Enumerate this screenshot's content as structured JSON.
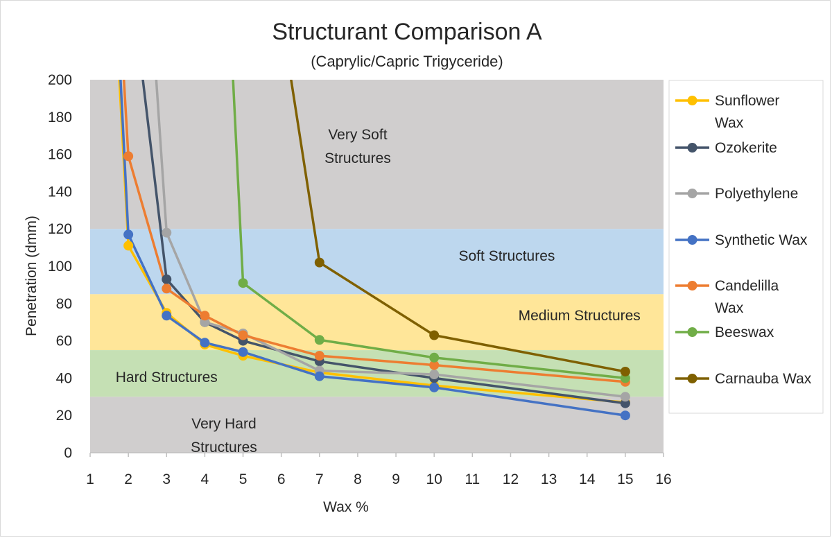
{
  "chart_data": {
    "type": "line",
    "title": "Structurant Comparison A",
    "subtitle": "(Caprylic/Capric Trigyceride)",
    "xlabel": "Wax %",
    "ylabel": "Penetration (dmm)",
    "xlim": [
      1,
      16
    ],
    "ylim": [
      0,
      200
    ],
    "x_ticks": [
      1,
      2,
      3,
      4,
      5,
      6,
      7,
      8,
      9,
      10,
      11,
      12,
      13,
      14,
      15,
      16
    ],
    "y_ticks": [
      0,
      20,
      40,
      60,
      80,
      100,
      120,
      140,
      160,
      180,
      200
    ],
    "x_tick_labels": [
      "1",
      "2",
      "3",
      "4",
      "5",
      "6",
      "7",
      "8",
      "9",
      "10",
      "11",
      "12",
      "13",
      "14",
      "15",
      "16"
    ],
    "y_tick_labels": [
      "0",
      "20",
      "40",
      "60",
      "80",
      "100",
      "120",
      "140",
      "160",
      "180",
      "200"
    ],
    "grid": false,
    "legend_position": "right",
    "bands": [
      {
        "from": 120,
        "to": 200,
        "color": "#d0cece",
        "label_lines": [
          "Very Soft",
          "Structures"
        ],
        "label_x": 8.0,
        "label_y": 168
      },
      {
        "from": 85,
        "to": 120,
        "color": "#bdd7ee",
        "label_lines": [
          "Soft Structures"
        ],
        "label_x": 11.9,
        "label_y": 103
      },
      {
        "from": 55,
        "to": 85,
        "color": "#ffe699",
        "label_lines": [
          "Medium Structures"
        ],
        "label_x": 13.8,
        "label_y": 71
      },
      {
        "from": 30,
        "to": 55,
        "color": "#c5e0b4",
        "label_lines": [
          "Hard Structures"
        ],
        "label_x": 3.0,
        "label_y": 38
      },
      {
        "from": 0,
        "to": 30,
        "color": "#d0cece",
        "label_lines": [
          "Very Hard",
          "Structures"
        ],
        "label_x": 4.5,
        "label_y": 13
      }
    ],
    "series": [
      {
        "name": "Sunflower Wax",
        "legend_lines": [
          "Sunflower",
          "Wax"
        ],
        "color": "#ffc000",
        "x": [
          1.5,
          2,
          3,
          4,
          5,
          7,
          10,
          15
        ],
        "y": [
          300,
          111,
          75,
          58,
          52,
          43,
          36,
          27
        ]
      },
      {
        "name": "Ozokerite",
        "legend_lines": [
          "Ozokerite"
        ],
        "color": "#44546a",
        "x": [
          1.8,
          3,
          4,
          5,
          7,
          10,
          15
        ],
        "y": [
          300,
          93,
          70,
          60,
          49,
          40,
          26.5
        ]
      },
      {
        "name": "Polyethylene",
        "legend_lines": [
          "Polyethylene"
        ],
        "color": "#a5a5a5",
        "x": [
          2.4,
          3,
          4,
          5,
          7,
          10,
          15
        ],
        "y": [
          300,
          118,
          70,
          64,
          44,
          42,
          30
        ]
      },
      {
        "name": "Synthetic Wax",
        "legend_lines": [
          "Synthetic Wax"
        ],
        "color": "#4472c4",
        "x": [
          1.55,
          2,
          3,
          4,
          5,
          7,
          10,
          15
        ],
        "y": [
          300,
          117,
          73.5,
          59,
          54,
          41,
          35,
          20
        ]
      },
      {
        "name": "Candelilla Wax",
        "legend_lines": [
          "Candelilla",
          "Wax"
        ],
        "color": "#ed7d31",
        "x": [
          1.6,
          2,
          3,
          4,
          5,
          7,
          10,
          15
        ],
        "y": [
          300,
          159,
          88,
          73.5,
          63,
          52,
          47,
          38
        ]
      },
      {
        "name": "Beeswax",
        "legend_lines": [
          "Beeswax"
        ],
        "color": "#70ad47",
        "x": [
          4.5,
          5,
          7,
          10,
          15
        ],
        "y": [
          300,
          91,
          60.5,
          51,
          40
        ]
      },
      {
        "name": "Carnauba Wax",
        "legend_lines": [
          "Carnauba Wax"
        ],
        "color": "#7f6000",
        "x": [
          5.5,
          7,
          10,
          15
        ],
        "y": [
          300,
          102,
          63,
          43.5
        ]
      }
    ]
  }
}
